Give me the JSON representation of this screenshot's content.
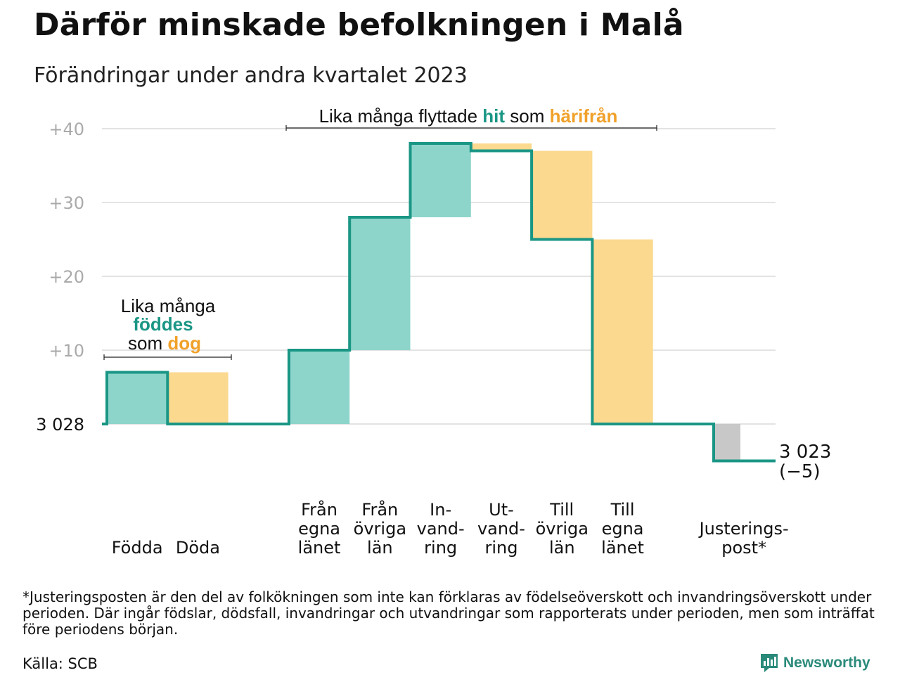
{
  "title": "Därför minskade befolkningen i Malå",
  "subtitle": "Förändringar under andra kvartalet 2023",
  "colors": {
    "in": "#8dd5cb",
    "out": "#fbd98f",
    "adjust": "#c8c8c8",
    "line": "#1a9685",
    "teal_text": "#1a9685",
    "orange_text": "#f0a12a",
    "grid": "#e3e3e3",
    "tick_text": "#aaaaaa"
  },
  "chart_data": {
    "type": "waterfall",
    "start_label": "3  028",
    "start_value": 3028,
    "y_ticks": [
      "+10",
      "+20",
      "+30",
      "+40"
    ],
    "ylim": [
      -7,
      42
    ],
    "steps": [
      {
        "label": [
          "Födda"
        ],
        "change": 7,
        "kind": "in"
      },
      {
        "label": [
          "Döda"
        ],
        "change": -7,
        "kind": "out"
      },
      {
        "label": [
          "Från",
          "egna",
          "länet"
        ],
        "change": 10,
        "kind": "in"
      },
      {
        "label": [
          "Från",
          "övriga",
          "län"
        ],
        "change": 18,
        "kind": "in"
      },
      {
        "label": [
          "In-",
          "vand-",
          "ring"
        ],
        "change": 10,
        "kind": "in"
      },
      {
        "label": [
          "Ut-",
          "vand-",
          "ring"
        ],
        "change": -1,
        "kind": "out"
      },
      {
        "label": [
          "Till",
          "övriga",
          "län"
        ],
        "change": -12,
        "kind": "out"
      },
      {
        "label": [
          "Till",
          "egna",
          "länet"
        ],
        "change": -25,
        "kind": "out"
      },
      {
        "label": [
          "Justerings-",
          "post*"
        ],
        "change": -5,
        "kind": "adjust"
      }
    ],
    "end_label": [
      "3 023",
      "(−5)"
    ],
    "annotations": {
      "births": {
        "line1": "Lika många",
        "word_teal": "föddes",
        "prefix": "som",
        "word_orange": "dog"
      },
      "migration": {
        "text1": "Lika många flyttade",
        "word_teal": "hit",
        "text2": "som",
        "word_orange": "härifrån"
      }
    }
  },
  "footnote": "*Justeringsposten är den del av folkökningen som inte kan förklaras av födelseöverskott och invandringsöverskott under perioden. Där ingår födslar, dödsfall, invandringar och utvandringar som rapporterats under perioden, men som inträffat före periodens början.",
  "source": "Källa: SCB",
  "brand": {
    "name": "Newsworthy",
    "icon": "newsworthy-logo-icon"
  }
}
